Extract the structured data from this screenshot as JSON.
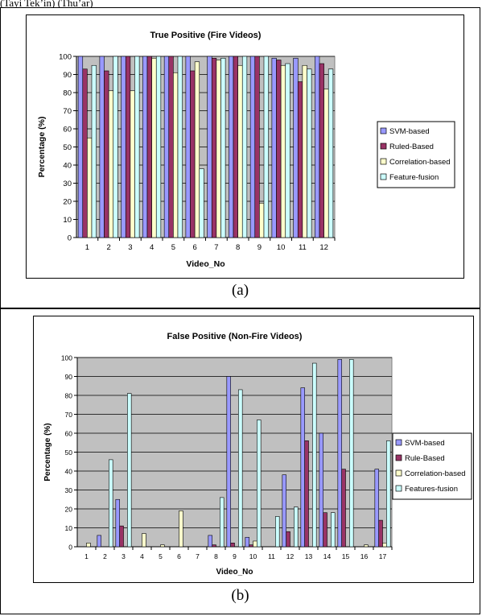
{
  "page": {
    "top_caption": "(Tayi Tek’in) (Thu’ar)"
  },
  "chart_data": [
    {
      "type": "bar",
      "title": "True Positive (Fire Videos)",
      "xlabel": "Video_No",
      "ylabel": "Percentage (%)",
      "ylim": [
        0,
        100
      ],
      "yticks": [
        0,
        10,
        20,
        30,
        40,
        50,
        60,
        70,
        80,
        90,
        100
      ],
      "grid": true,
      "legend_position": "right",
      "caption": "(a)",
      "categories": [
        "1",
        "2",
        "3",
        "4",
        "5",
        "6",
        "7",
        "8",
        "9",
        "10",
        "11",
        "12"
      ],
      "series": [
        {
          "name": "SVM-based",
          "color": "#9999ff",
          "values": [
            100,
            100,
            100,
            100,
            100,
            100,
            100,
            100,
            100,
            99,
            99,
            100
          ]
        },
        {
          "name": "Ruled-Based",
          "color": "#993366",
          "values": [
            93,
            92,
            100,
            100,
            100,
            92,
            99,
            100,
            100,
            98,
            86,
            96
          ]
        },
        {
          "name": "Correlation-based",
          "color": "#ffffcc",
          "values": [
            55,
            81,
            81,
            99,
            91,
            97,
            98,
            95,
            19,
            95,
            95,
            82
          ]
        },
        {
          "name": "Feature-fusion",
          "color": "#ccffff",
          "values": [
            95,
            100,
            100,
            100,
            100,
            38,
            99,
            100,
            100,
            96,
            93,
            93
          ]
        }
      ]
    },
    {
      "type": "bar",
      "title": "False Positive (Non-Fire Videos)",
      "xlabel": "Video_No",
      "ylabel": "Percentage (%)",
      "ylim": [
        0,
        100
      ],
      "yticks": [
        0,
        10,
        20,
        30,
        40,
        50,
        60,
        70,
        80,
        90,
        100
      ],
      "grid": true,
      "legend_position": "right",
      "caption": "(b)",
      "categories": [
        "1",
        "2",
        "3",
        "4",
        "5",
        "6",
        "7",
        "8",
        "9",
        "10",
        "11",
        "12",
        "13",
        "14",
        "15",
        "16",
        "17"
      ],
      "series": [
        {
          "name": "SVM-based",
          "color": "#9999ff",
          "values": [
            0,
            6,
            25,
            0,
            0,
            0,
            0,
            6,
            90,
            5,
            0,
            38,
            84,
            60,
            99,
            0,
            41
          ]
        },
        {
          "name": "Rule-Based",
          "color": "#993366",
          "values": [
            0,
            0,
            11,
            0,
            0,
            0,
            0,
            1,
            2,
            1,
            0,
            8,
            56,
            18,
            41,
            0,
            14
          ]
        },
        {
          "name": "Correlation-based",
          "color": "#ffffcc",
          "values": [
            2,
            0,
            0,
            7,
            1,
            19,
            0,
            0,
            0,
            3,
            0,
            0,
            0,
            0,
            0,
            1,
            2
          ]
        },
        {
          "name": "Features-fusion",
          "color": "#ccffff",
          "values": [
            0,
            46,
            81,
            0,
            0,
            0,
            0,
            26,
            83,
            67,
            16,
            21,
            97,
            18,
            99,
            0,
            56
          ]
        }
      ]
    }
  ]
}
